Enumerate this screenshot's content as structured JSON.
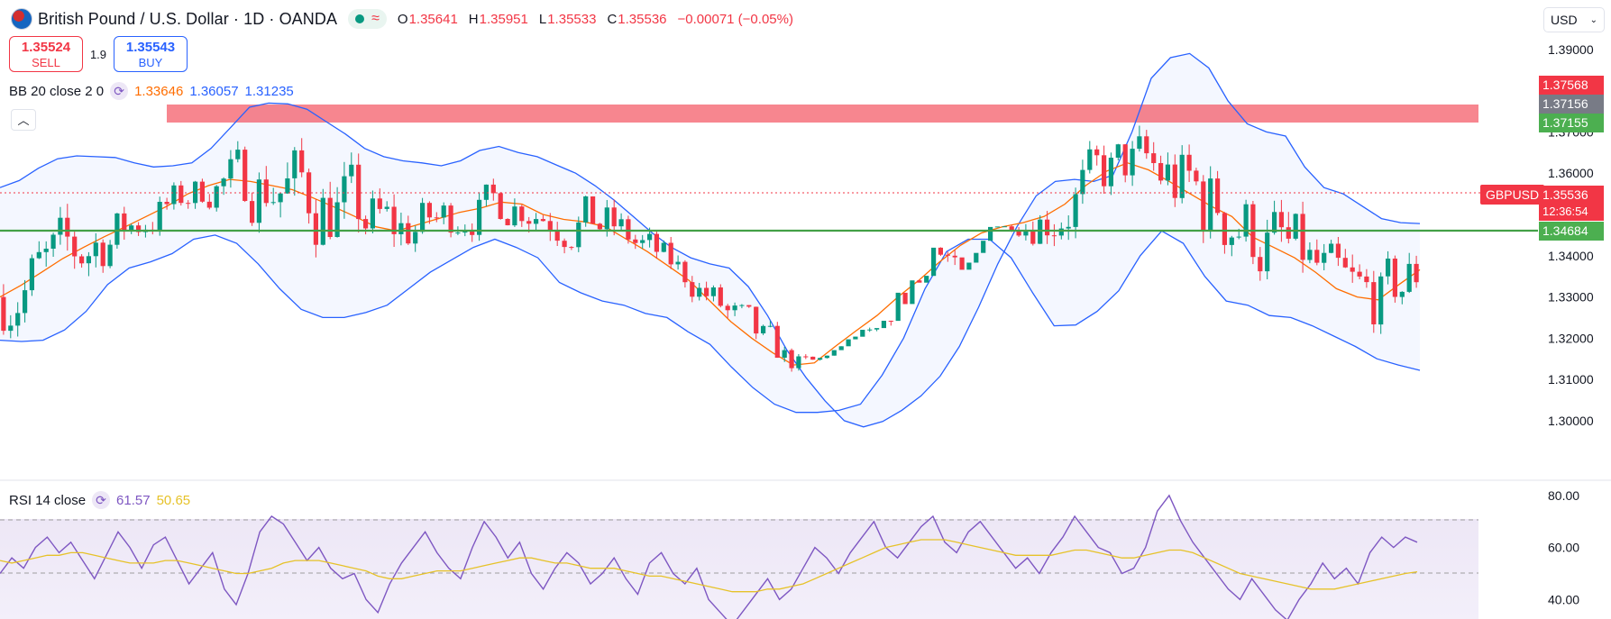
{
  "header": {
    "title": "British Pound / U.S. Dollar · 1D · OANDA",
    "status_icon": "wave-icon",
    "ohlc": [
      {
        "k": "O",
        "v": "1.35641"
      },
      {
        "k": "H",
        "v": "1.35951"
      },
      {
        "k": "L",
        "v": "1.35533"
      },
      {
        "k": "C",
        "v": "1.35536"
      },
      {
        "k": "",
        "v": "−0.00071 (−0.05%)"
      }
    ]
  },
  "trade": {
    "sell_price": "1.35524",
    "sell_label": "SELL",
    "spread": "1.9",
    "buy_price": "1.35543",
    "buy_label": "BUY"
  },
  "currency": {
    "value": "USD"
  },
  "bb": {
    "label": "BB 20 close 2 0",
    "basis": "1.33646",
    "upper": "1.36057",
    "lower": "1.31235"
  },
  "rsi": {
    "label": "RSI 14 close",
    "rsi": "61.57",
    "ma": "50.65"
  },
  "price_labels": {
    "zone_top": "1.37568",
    "zone_mid": "1.37156",
    "zone_bottom": "1.37155",
    "symbol": "GBPUSD",
    "last": "1.35536",
    "countdown": "12:36:54",
    "support": "1.34684"
  },
  "colors": {
    "up": "#089981",
    "down": "#f23645",
    "bb_band": "#2962ff",
    "bb_basis": "#ff6d00",
    "rsi": "#7e57c2",
    "rsi_ma": "#e6c229",
    "zone": "#f23645",
    "support": "#4caf50"
  },
  "chart_data": [
    {
      "type": "candlestick",
      "symbol": "GBPUSD",
      "interval": "1D",
      "price_axis_ticks": [
        1.39,
        1.37,
        1.36,
        1.34,
        1.33,
        1.32,
        1.31,
        1.3
      ],
      "ylim": [
        1.2967,
        1.3915
      ],
      "series": [
        {
          "name": "BB upper",
          "values": [
            1.3565,
            1.3582,
            1.3612,
            1.3635,
            1.3642,
            1.364,
            1.3638,
            1.3625,
            1.3615,
            1.3618,
            1.3625,
            1.366,
            1.371,
            1.376,
            1.377,
            1.3768,
            1.3755,
            1.3725,
            1.3695,
            1.366,
            1.364,
            1.363,
            1.3625,
            1.3618,
            1.363,
            1.3655,
            1.3665,
            1.365,
            1.364,
            1.362,
            1.36,
            1.357,
            1.3535,
            1.3495,
            1.3455,
            1.342,
            1.3395,
            1.338,
            1.337,
            1.3325,
            1.3255,
            1.3172,
            1.3105,
            1.3048,
            1.3,
            1.2985,
            1.2998,
            1.3025,
            1.306,
            1.3108,
            1.318,
            1.3275,
            1.338,
            1.347,
            1.3545,
            1.358,
            1.3585,
            1.358,
            1.3595,
            1.37,
            1.383,
            1.388,
            1.389,
            1.3855,
            1.3775,
            1.372,
            1.37,
            1.369,
            1.3615,
            1.3565,
            1.355,
            1.352,
            1.349,
            1.348,
            1.3478
          ]
        },
        {
          "name": "BB basis",
          "values": [
            1.33,
            1.3328,
            1.336,
            1.3393,
            1.342,
            1.3446,
            1.347,
            1.3495,
            1.352,
            1.355,
            1.357,
            1.3585,
            1.358,
            1.357,
            1.356,
            1.354,
            1.3518,
            1.3495,
            1.347,
            1.346,
            1.3475,
            1.349,
            1.3505,
            1.3515,
            1.353,
            1.3525,
            1.35,
            1.3488,
            1.3482,
            1.347,
            1.344,
            1.341,
            1.3375,
            1.334,
            1.329,
            1.324,
            1.32,
            1.3165,
            1.3135,
            1.314,
            1.318,
            1.3218,
            1.3255,
            1.33,
            1.334,
            1.3385,
            1.3425,
            1.3455,
            1.347,
            1.348,
            1.3495,
            1.3525,
            1.357,
            1.3605,
            1.3625,
            1.3608,
            1.358,
            1.355,
            1.352,
            1.3495,
            1.3445,
            1.342,
            1.3395,
            1.336,
            1.332,
            1.33,
            1.3293,
            1.333,
            1.3366
          ]
        },
        {
          "name": "BB lower",
          "values": [
            1.3195,
            1.3192,
            1.3195,
            1.322,
            1.3265,
            1.333,
            1.337,
            1.3385,
            1.3405,
            1.344,
            1.345,
            1.343,
            1.338,
            1.332,
            1.327,
            1.325,
            1.325,
            1.3262,
            1.328,
            1.332,
            1.336,
            1.339,
            1.342,
            1.344,
            1.342,
            1.3395,
            1.3335,
            1.331,
            1.329,
            1.328,
            1.326,
            1.325,
            1.3215,
            1.3185,
            1.313,
            1.308,
            1.304,
            1.302,
            1.302,
            1.3025,
            1.304,
            1.311,
            1.32,
            1.332,
            1.341,
            1.344,
            1.344,
            1.3395,
            1.331,
            1.323,
            1.3232,
            1.3265,
            1.3315,
            1.34,
            1.346,
            1.343,
            1.335,
            1.329,
            1.328,
            1.3255,
            1.325,
            1.323,
            1.3205,
            1.318,
            1.315,
            1.3135,
            1.3122
          ]
        }
      ]
    },
    {
      "type": "line",
      "title": "RSI 14 close",
      "axis_ticks": [
        80,
        60,
        40
      ],
      "ylim": [
        32.5,
        81
      ],
      "bands": [
        70,
        50
      ],
      "series": [
        {
          "name": "RSI",
          "values": [
            50,
            56,
            52,
            60,
            64,
            58,
            62,
            55,
            48,
            57,
            66,
            60,
            52,
            61,
            64,
            55,
            46,
            52,
            58,
            44,
            38,
            50,
            66,
            72,
            69,
            62,
            55,
            60,
            52,
            48,
            50,
            40,
            35,
            46,
            54,
            60,
            66,
            58,
            52,
            48,
            60,
            70,
            64,
            56,
            62,
            50,
            44,
            52,
            58,
            54,
            46,
            50,
            56,
            48,
            42,
            54,
            58,
            50,
            46,
            52,
            40,
            35,
            30,
            36,
            42,
            48,
            40,
            44,
            52,
            60,
            56,
            50,
            58,
            64,
            70,
            60,
            56,
            62,
            68,
            72,
            62,
            58,
            66,
            70,
            64,
            58,
            52,
            56,
            50,
            58,
            64,
            72,
            66,
            60,
            58,
            50,
            52,
            60,
            74,
            80,
            70,
            62,
            56,
            50,
            44,
            40,
            48,
            42,
            36,
            32,
            40,
            46,
            54,
            48,
            52,
            46,
            58,
            64,
            60,
            64,
            62
          ]
        },
        {
          "name": "RSI MA",
          "values": [
            55,
            54,
            55,
            56,
            57,
            57,
            58,
            58,
            57,
            56,
            55,
            54,
            54,
            54,
            55,
            55,
            54,
            53,
            52,
            51,
            50,
            50,
            51,
            52,
            54,
            55,
            55,
            55,
            54,
            53,
            52,
            51,
            49,
            48,
            48,
            49,
            50,
            51,
            51,
            51,
            52,
            53,
            54,
            55,
            56,
            56,
            55,
            54,
            54,
            53,
            52,
            52,
            52,
            51,
            50,
            49,
            49,
            48,
            47,
            46,
            45,
            44,
            43,
            43,
            43,
            44,
            44,
            45,
            46,
            48,
            50,
            52,
            54,
            56,
            58,
            60,
            61,
            62,
            63,
            63,
            63,
            62,
            61,
            60,
            59,
            58,
            57,
            57,
            57,
            57,
            58,
            59,
            59,
            58,
            57,
            56,
            56,
            57,
            58,
            59,
            59,
            58,
            56,
            54,
            52,
            50,
            49,
            48,
            47,
            46,
            45,
            44,
            44,
            44,
            45,
            46,
            47,
            48,
            49,
            50,
            50.65
          ]
        }
      ]
    }
  ]
}
